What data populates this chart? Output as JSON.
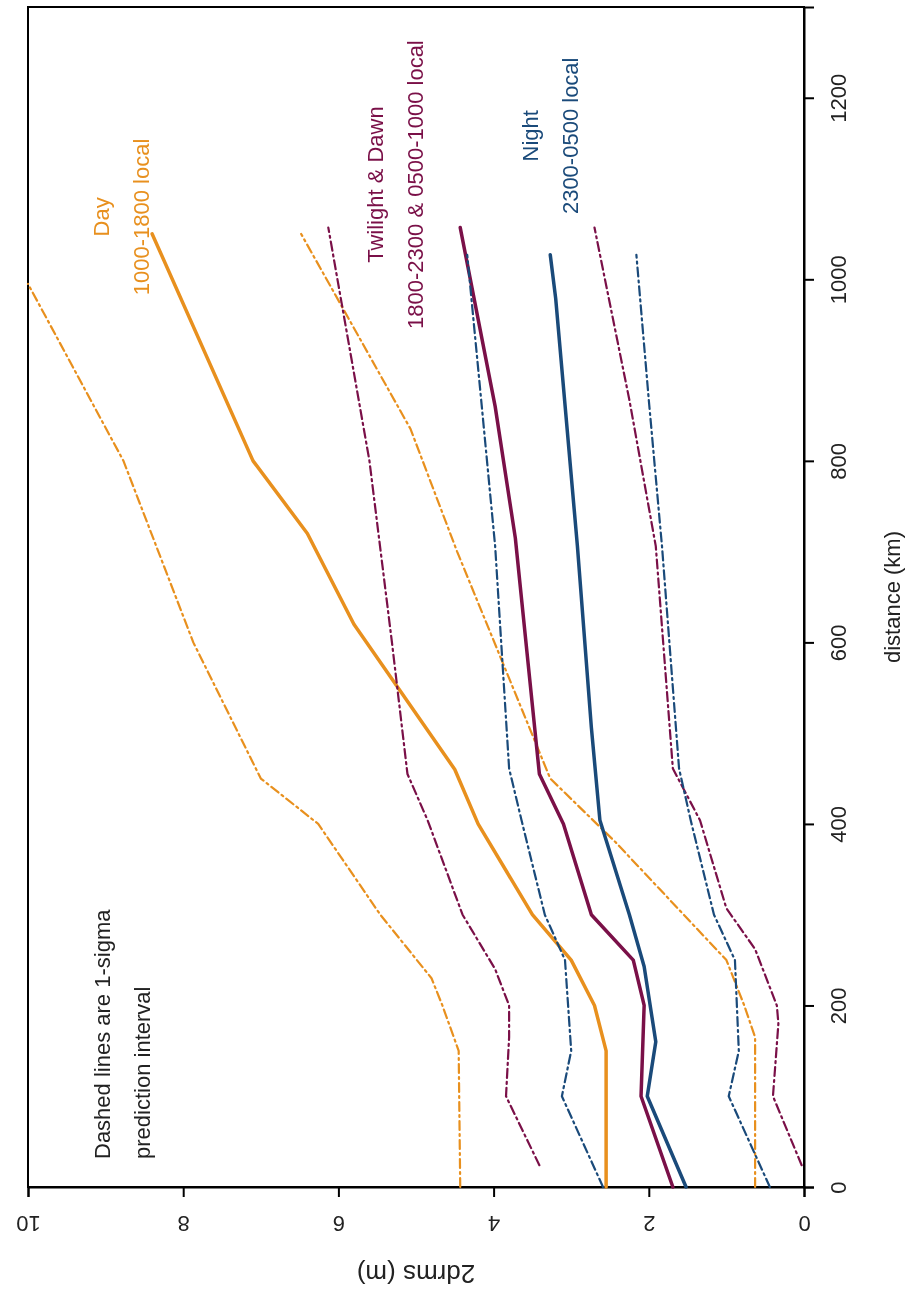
{
  "chart_data": {
    "type": "line",
    "xlabel": "2drms (m)",
    "ylabel": "distance (km)",
    "xlim": [
      10,
      0
    ],
    "xticks": [
      0,
      2,
      4,
      6,
      8,
      10
    ],
    "ylim": [
      0,
      1300
    ],
    "yticks": [
      0,
      200,
      400,
      600,
      800,
      1000,
      1200
    ],
    "grid": false,
    "annotations": [
      "Dashed lines are 1-sigma\nprediction interval"
    ],
    "series": [
      {
        "name": "Day\n1000-1800 local",
        "color": "#e8901e",
        "line_style": "solid",
        "values": [
          0,
          150,
          200,
          250,
          300,
          400,
          460,
          620,
          720,
          800,
          1050
        ],
        "x": [
          2.55,
          2.55,
          2.7,
          3.0,
          3.5,
          4.2,
          4.5,
          5.8,
          6.4,
          7.1,
          8.4
        ]
      },
      {
        "color": "#e8901e",
        "line_style": "dashed",
        "values": [
          0,
          150,
          200,
          230,
          300,
          400,
          450,
          600,
          800,
          995
        ],
        "x": [
          4.43,
          4.45,
          4.66,
          4.8,
          5.46,
          6.26,
          7.0,
          7.87,
          8.77,
          10.0
        ]
      },
      {
        "color": "#e8901e",
        "line_style": "dashed",
        "values": [
          0,
          165,
          200,
          250,
          380,
          450,
          700,
          835,
          1050
        ],
        "x": [
          0.63,
          0.63,
          0.77,
          1.0,
          2.43,
          3.27,
          4.47,
          5.07,
          6.48
        ]
      },
      {
        "name": "Twilight & Dawn\n1800-2300  & 0500-1000 local",
        "color": "#7a1048",
        "line_style": "solid",
        "values": [
          0,
          100,
          200,
          250,
          300,
          400,
          455,
          715,
          860,
          1057
        ],
        "x": [
          1.69,
          2.1,
          2.06,
          2.2,
          2.74,
          3.1,
          3.41,
          3.72,
          3.98,
          4.43
        ]
      },
      {
        "color": "#7a1048",
        "line_style": "dashed",
        "values": [
          24,
          100,
          165,
          200,
          240,
          300,
          404,
          455,
          600,
          800,
          1057
        ],
        "x": [
          3.41,
          3.84,
          3.8,
          3.8,
          3.98,
          4.4,
          4.85,
          5.11,
          5.31,
          5.6,
          6.13
        ]
      },
      {
        "color": "#7a1048",
        "line_style": "dashed",
        "values": [
          24,
          100,
          180,
          200,
          262,
          307,
          404,
          461,
          706,
          867,
          1057
        ],
        "x": [
          0.03,
          0.4,
          0.33,
          0.35,
          0.63,
          1.0,
          1.34,
          1.69,
          1.91,
          2.25,
          2.7
        ]
      },
      {
        "name": "Night\n2300-0500 local",
        "color": "#1a4a7a",
        "line_style": "solid",
        "values": [
          0,
          100,
          160,
          243,
          300,
          404,
          506,
          706,
          979,
          1027
        ],
        "x": [
          1.52,
          2.02,
          1.91,
          2.06,
          2.25,
          2.63,
          2.74,
          2.92,
          3.2,
          3.27
        ]
      },
      {
        "color": "#1a4a7a",
        "line_style": "dashed",
        "values": [
          0,
          100,
          150,
          250,
          300,
          404,
          461,
          706,
          867,
          1027
        ],
        "x": [
          2.59,
          3.12,
          3.0,
          3.08,
          3.34,
          3.64,
          3.8,
          3.98,
          4.16,
          4.34
        ]
      },
      {
        "color": "#1a4a7a",
        "line_style": "dashed",
        "values": [
          0,
          100,
          150,
          250,
          300,
          404,
          461,
          706,
          867,
          1027
        ],
        "x": [
          0.44,
          0.97,
          0.84,
          0.89,
          1.16,
          1.46,
          1.61,
          1.83,
          2.0,
          2.16
        ]
      }
    ]
  }
}
